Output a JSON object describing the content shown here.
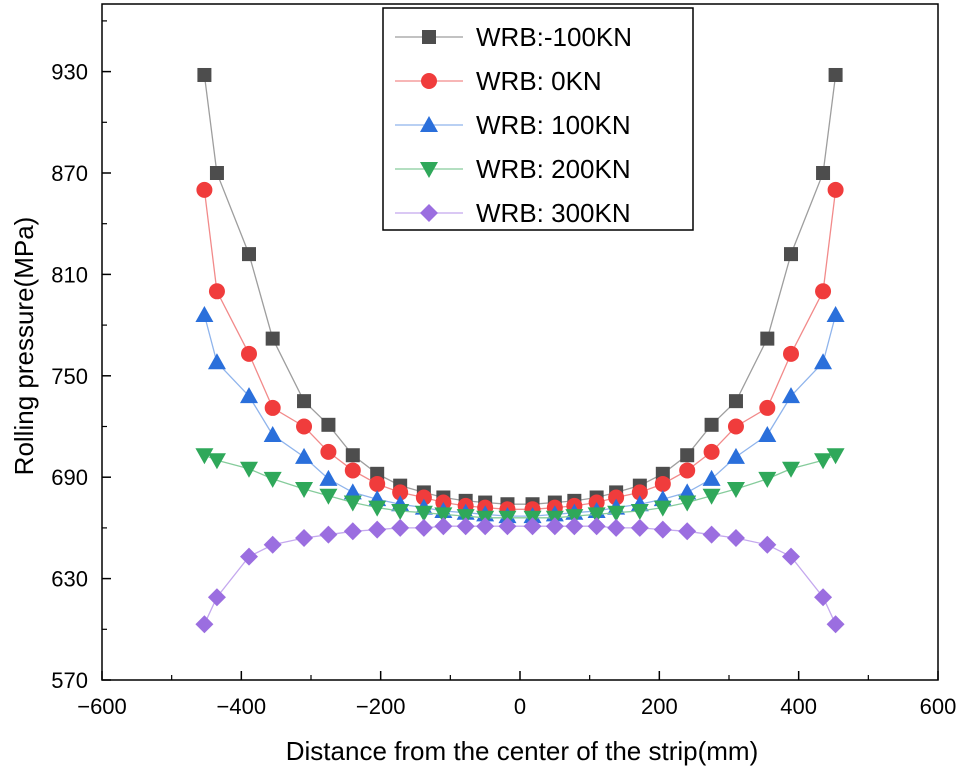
{
  "chart_data": {
    "type": "line",
    "xlabel": "Distance from the center of the strip(mm)",
    "ylabel": "Rolling pressure(MPa)",
    "xlim": [
      -600,
      600
    ],
    "ylim": [
      570,
      970
    ],
    "xticks": [
      -600,
      -400,
      -200,
      0,
      200,
      400,
      600
    ],
    "xtick_labels": [
      "−600",
      "−400",
      "−200",
      "0",
      "200",
      "400",
      "600"
    ],
    "yticks": [
      570,
      630,
      690,
      750,
      810,
      870,
      930
    ],
    "ytick_labels": [
      "570",
      "630",
      "690",
      "750",
      "810",
      "870",
      "930"
    ],
    "legend_position": "top-center",
    "x": [
      -453,
      -435,
      -389,
      -355,
      -310,
      -275,
      -240,
      -205,
      -172,
      -138,
      -110,
      -78,
      -50,
      -18,
      18,
      50,
      78,
      110,
      138,
      172,
      205,
      240,
      275,
      310,
      355,
      389,
      435,
      453
    ],
    "series": [
      {
        "name": "WRB:-100KN",
        "marker": "square",
        "color": "#4d4d4d",
        "line_color": "#9e9e9e",
        "values": [
          928,
          870,
          822,
          772,
          735,
          721,
          703,
          692,
          685,
          681,
          678,
          676,
          675,
          674,
          674,
          675,
          676,
          678,
          681,
          685,
          692,
          703,
          721,
          735,
          772,
          822,
          870,
          928
        ]
      },
      {
        "name": "WRB: 0KN",
        "marker": "circle",
        "color": "#f03c3c",
        "line_color": "#f28a8a",
        "values": [
          860,
          800,
          763,
          731,
          720,
          705,
          694,
          686,
          681,
          678,
          675,
          673,
          672,
          671,
          671,
          672,
          673,
          675,
          678,
          681,
          686,
          694,
          705,
          720,
          731,
          763,
          800,
          860
        ]
      },
      {
        "name": "WRB: 100KN",
        "marker": "triangle-up",
        "color": "#2a6fdb",
        "line_color": "#8fb4ec",
        "values": [
          786,
          758,
          738,
          715,
          702,
          689,
          681,
          677,
          674,
          672,
          670,
          669,
          668,
          667,
          667,
          668,
          669,
          670,
          672,
          674,
          677,
          681,
          689,
          702,
          715,
          738,
          758,
          786
        ]
      },
      {
        "name": "WRB: 200KN",
        "marker": "triangle-down",
        "color": "#2fa85a",
        "line_color": "#86cc9c",
        "values": [
          703,
          700,
          695,
          689,
          683,
          679,
          675,
          672,
          670,
          669,
          668,
          667,
          666,
          666,
          666,
          666,
          667,
          668,
          669,
          670,
          672,
          675,
          679,
          683,
          689,
          695,
          700,
          703
        ]
      },
      {
        "name": "WRB: 300KN",
        "marker": "diamond",
        "color": "#9b6ee0",
        "line_color": "#c4a8ee",
        "values": [
          603,
          619,
          643,
          650,
          654,
          656,
          658,
          659,
          660,
          660,
          661,
          661,
          661,
          661,
          661,
          661,
          661,
          661,
          660,
          660,
          659,
          658,
          656,
          654,
          650,
          643,
          619,
          603
        ]
      }
    ]
  }
}
